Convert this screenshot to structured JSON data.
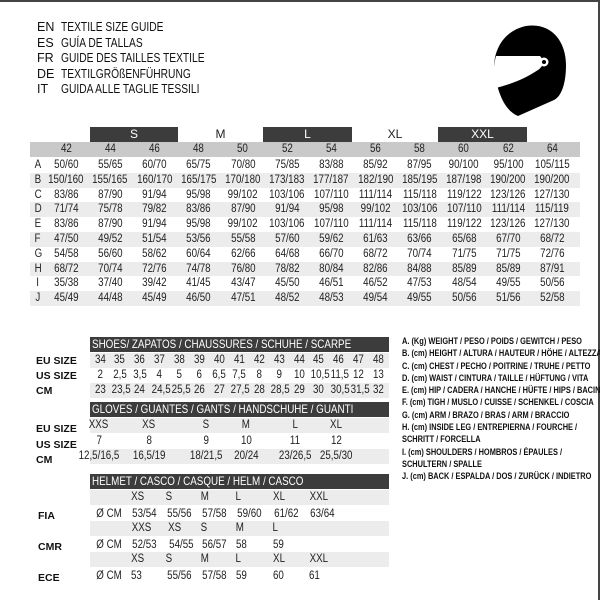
{
  "titles": [
    {
      "code": "EN",
      "text": "TEXTILE SIZE GUIDE"
    },
    {
      "code": "ES",
      "text": "GUÍA DE TALLAS"
    },
    {
      "code": "FR",
      "text": "GUIDE DES TAILLES TEXTILE"
    },
    {
      "code": "DE",
      "text": "TEXTILGRÖßENFÜHRUNG"
    },
    {
      "code": "IT",
      "text": "GUIDA ALLE TAGLIE TESSILI"
    }
  ],
  "helmet_icon": "motorcycle-helmet-icon",
  "colors": {
    "dark_band": "#3c3c3c",
    "gray_header": "#c9c9c9",
    "stripe": "#ececec"
  },
  "textile": {
    "size_bands": [
      {
        "label": "S",
        "dark": true
      },
      {
        "label": "M",
        "dark": false
      },
      {
        "label": "L",
        "dark": true
      },
      {
        "label": "XL",
        "dark": false
      },
      {
        "label": "XXL",
        "dark": true
      }
    ],
    "sizes": [
      "42",
      "44",
      "46",
      "48",
      "50",
      "52",
      "54",
      "56",
      "58",
      "60",
      "62",
      "64"
    ],
    "rows": [
      {
        "key": "A",
        "values": [
          "50/60",
          "55/65",
          "60/70",
          "65/75",
          "70/80",
          "75/85",
          "83/88",
          "85/92",
          "87/95",
          "90/100",
          "95/100",
          "105/115"
        ]
      },
      {
        "key": "B",
        "values": [
          "150/160",
          "155/165",
          "160/170",
          "165/175",
          "170/180",
          "173/183",
          "177/187",
          "182/190",
          "185/195",
          "187/198",
          "190/200",
          "190/200"
        ]
      },
      {
        "key": "C",
        "values": [
          "83/86",
          "87/90",
          "91/94",
          "95/98",
          "99/102",
          "103/106",
          "107/110",
          "111/114",
          "115/118",
          "119/122",
          "123/126",
          "127/130"
        ]
      },
      {
        "key": "D",
        "values": [
          "71/74",
          "75/78",
          "79/82",
          "83/86",
          "87/90",
          "91/94",
          "95/98",
          "99/102",
          "103/106",
          "107/110",
          "111/114",
          "115/119"
        ]
      },
      {
        "key": "E",
        "values": [
          "83/86",
          "87/90",
          "91/94",
          "95/98",
          "99/102",
          "103/106",
          "107/110",
          "111/114",
          "115/118",
          "119/122",
          "123/126",
          "127/130"
        ]
      },
      {
        "key": "F",
        "values": [
          "47/50",
          "49/52",
          "51/54",
          "53/56",
          "55/58",
          "57/60",
          "59/62",
          "61/63",
          "63/66",
          "65/68",
          "67/70",
          "68/72"
        ]
      },
      {
        "key": "G",
        "values": [
          "54/58",
          "56/60",
          "58/62",
          "60/64",
          "62/66",
          "64/68",
          "66/70",
          "68/72",
          "70/74",
          "71/75",
          "71/75",
          "72/76"
        ]
      },
      {
        "key": "H",
        "values": [
          "68/72",
          "70/74",
          "72/76",
          "74/78",
          "76/80",
          "78/82",
          "80/84",
          "82/86",
          "84/88",
          "85/89",
          "85/89",
          "87/91"
        ]
      },
      {
        "key": "I",
        "values": [
          "35/38",
          "37/40",
          "39/42",
          "41/45",
          "43/47",
          "45/50",
          "46/51",
          "46/52",
          "47/53",
          "48/54",
          "49/55",
          "50/56"
        ]
      },
      {
        "key": "J",
        "values": [
          "45/49",
          "44/48",
          "45/49",
          "46/50",
          "47/51",
          "48/52",
          "48/53",
          "49/54",
          "49/55",
          "50/56",
          "51/56",
          "52/58"
        ]
      }
    ]
  },
  "shoes": {
    "title": "SHOES/ ZAPATOS / CHAUSSURES / SCHUHE / SCARPE",
    "rows": [
      {
        "label": "EU SIZE",
        "values": [
          "34",
          "35",
          "36",
          "37",
          "38",
          "39",
          "40",
          "41",
          "42",
          "43",
          "44",
          "45",
          "46",
          "47",
          "48"
        ]
      },
      {
        "label": "US SIZE",
        "values": [
          "2",
          "2,5",
          "3,5",
          "4",
          "5",
          "6",
          "6,5",
          "7,5",
          "8",
          "9",
          "10",
          "10,5",
          "11,5",
          "12",
          "13"
        ]
      },
      {
        "label": "CM",
        "values": [
          "23",
          "23,5",
          "24",
          "24,5",
          "25,5",
          "26",
          "27",
          "27,5",
          "28",
          "28,5",
          "29",
          "30",
          "30,5",
          "31,5",
          "32"
        ]
      }
    ]
  },
  "gloves": {
    "title": "GLOVES / GUANTES / GANTS / HANDSCHUHE / GUANTI",
    "rows": [
      {
        "label": "EU SIZE",
        "values": [
          "XXS",
          "XS",
          "S",
          "M",
          "L",
          "XL"
        ]
      },
      {
        "label": "US SIZE",
        "values": [
          "7",
          "8",
          "9",
          "10",
          "11",
          "12"
        ]
      },
      {
        "label": "CM",
        "values": [
          "12,5/16,5",
          "16,5/19",
          "18/21,5",
          "20/24",
          "23/26,5",
          "25,5/30"
        ]
      }
    ]
  },
  "helmet": {
    "title": "HELMET / CASCO / CASQUE / HELM / CASCO",
    "unit": "Ø CM",
    "groups": [
      {
        "label": "FIA",
        "sizes": [
          "XS",
          "S",
          "M",
          "L",
          "XL",
          "XXL"
        ],
        "values": [
          "53/54",
          "55/56",
          "57/58",
          "59/60",
          "61/62",
          "63/64"
        ]
      },
      {
        "label": "CMR",
        "sizes": [
          "XXS",
          "XS",
          "S",
          "M",
          "L"
        ],
        "values": [
          "52/53",
          "54/55",
          "56/57",
          "58",
          "59"
        ]
      },
      {
        "label": "ECE",
        "sizes": [
          "XS",
          "S",
          "M",
          "L",
          "XL",
          "XXL"
        ],
        "values": [
          "53",
          "55/56",
          "57/58",
          "59",
          "60",
          "61"
        ]
      }
    ]
  },
  "legend": [
    "A. (Kg) WEIGHT / PESO / POIDS / GEWITCH / PESO",
    "B. (cm) HEIGHT / ALTURA / HAUTEUR / HÖHE / ALTEZZA",
    "C. (cm) CHEST / PECHO / POITRINE / TRUHE / PETTO",
    "D. (cm) WAIST / CINTURA / TAILLE / HÜFTUNG / VITA",
    "E. (cm) HIP / CADERA / HANCHE / HÜFTE / HIPS /  BACINO",
    "F.  (cm) TIGH / MUSLO / CUISSE / SCHENKEL / COSCIA",
    "G. (cm) ARM  / BRAZO / BRAS / ARM / BRACCIO",
    "H. (cm) INSIDE LEG / ENTREPIERNA / FOURCHE /",
    "SCHRITT / FORCELLA",
    "I.  (cm) SHOULDERS / HOMBROS / ÉPAULES /",
    "SCHULTERN / SPALLE",
    "J. (cm) BACK / ESPALDA / DOS / ZURÜCK / INDIETRO"
  ]
}
